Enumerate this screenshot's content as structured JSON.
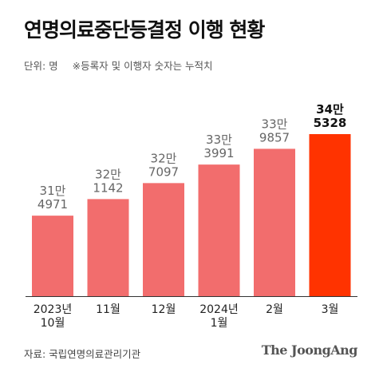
{
  "header": {
    "title": "연명의료중단등결정 이행 현황",
    "unit_note": "단위: 명",
    "cumulative_note": "※등록자 및 이행자 숫자는 누적치"
  },
  "footer": {
    "source": "자료: 국립연명의료관리기관",
    "brand": "The JoongAng"
  },
  "colors": {
    "bar": "#f26d6d",
    "highlight_bar": "#ff3300",
    "baseline": "#333333"
  },
  "chart_data": {
    "type": "bar",
    "categories": [
      "2023년\n10월",
      "11월",
      "12월",
      "2024년\n1월",
      "2월",
      "3월"
    ],
    "values": [
      314971,
      321142,
      327097,
      333991,
      339857,
      345328
    ],
    "value_labels": [
      "31만\n4971",
      "32만\n1142",
      "32만\n7097",
      "33만\n3991",
      "33만\n9857",
      "34만\n5328"
    ],
    "highlight_index": 5,
    "title": "연명의료중단등결정 이행 현황",
    "xlabel": "",
    "ylabel": "",
    "grid": false
  }
}
